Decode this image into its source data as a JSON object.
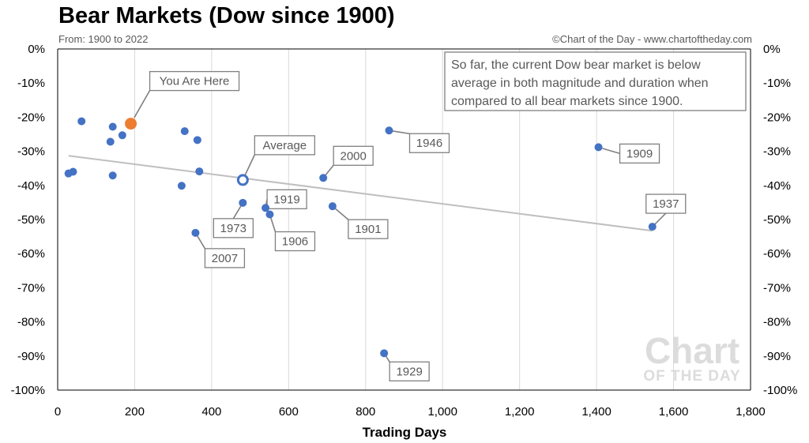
{
  "chart_data": {
    "type": "scatter",
    "title": "Bear Markets (Dow since 1900)",
    "subtitle": "From: 1900 to 2022",
    "credit": "©Chart of the Day - www.chartoftheday.com",
    "xlabel": "Trading Days",
    "ylabel": "",
    "xlim": [
      0,
      1800
    ],
    "ylim": [
      -100,
      0
    ],
    "x_ticks": [
      0,
      200,
      400,
      600,
      800,
      1000,
      1200,
      1400,
      1600,
      1800
    ],
    "x_tick_labels": [
      "0",
      "200",
      "400",
      "600",
      "800",
      "1,000",
      "1,200",
      "1,400",
      "1,600",
      "1,800"
    ],
    "y_ticks": [
      0,
      -10,
      -20,
      -30,
      -40,
      -50,
      -60,
      -70,
      -80,
      -90,
      -100
    ],
    "y_tick_labels": [
      "0%",
      "-10%",
      "-20%",
      "-30%",
      "-40%",
      "-50%",
      "-60%",
      "-70%",
      "-80%",
      "-90%",
      "-100%"
    ],
    "grid": "vertical",
    "colors": {
      "points": "#4472c4",
      "current": "#ed7d31",
      "average": "#4472c4",
      "trendline": "#bfbfbf",
      "gridline": "#d9d9d9",
      "callout_border": "#808080",
      "text_gray": "#595959"
    },
    "points": [
      {
        "x": 28,
        "y": -36.5
      },
      {
        "x": 40,
        "y": -36.0
      },
      {
        "x": 62,
        "y": -21.2
      },
      {
        "x": 137,
        "y": -27.2
      },
      {
        "x": 143,
        "y": -22.8
      },
      {
        "x": 143,
        "y": -37.1
      },
      {
        "x": 168,
        "y": -25.3
      },
      {
        "x": 322,
        "y": -40.1
      },
      {
        "x": 330,
        "y": -24.1
      },
      {
        "x": 358,
        "y": -53.9
      },
      {
        "x": 363,
        "y": -26.7
      },
      {
        "x": 368,
        "y": -35.9
      },
      {
        "x": 481,
        "y": -45.1,
        "label": "1973"
      },
      {
        "x": 540,
        "y": -46.6,
        "label": "1919"
      },
      {
        "x": 551,
        "y": -48.5,
        "label": "1906"
      },
      {
        "x": 690,
        "y": -37.8,
        "label": "2000"
      },
      {
        "x": 714,
        "y": -46.1,
        "label": "1901"
      },
      {
        "x": 848,
        "y": -89.2,
        "label": "1929"
      },
      {
        "x": 861,
        "y": -23.9,
        "label": "1946"
      },
      {
        "x": 1405,
        "y": -28.8,
        "label": "1909"
      },
      {
        "x": 1545,
        "y": -52.1,
        "label": "1937"
      }
    ],
    "label_2007": {
      "x": 358,
      "y": -53.9,
      "label": "2007"
    },
    "current": {
      "x": 190,
      "y": -21.9,
      "label": "You Are Here"
    },
    "average": {
      "x": 481,
      "y": -38.4,
      "label": "Average"
    },
    "trendline": [
      {
        "x": 28,
        "y": -31.3
      },
      {
        "x": 1545,
        "y": -53.3
      }
    ],
    "annotation": [
      "So far, the current Dow bear market is below",
      "average in both magnitude and duration when",
      "compared to all bear markets since 1900."
    ],
    "watermark": {
      "line1": "Chart",
      "line2": "OF THE DAY"
    }
  }
}
